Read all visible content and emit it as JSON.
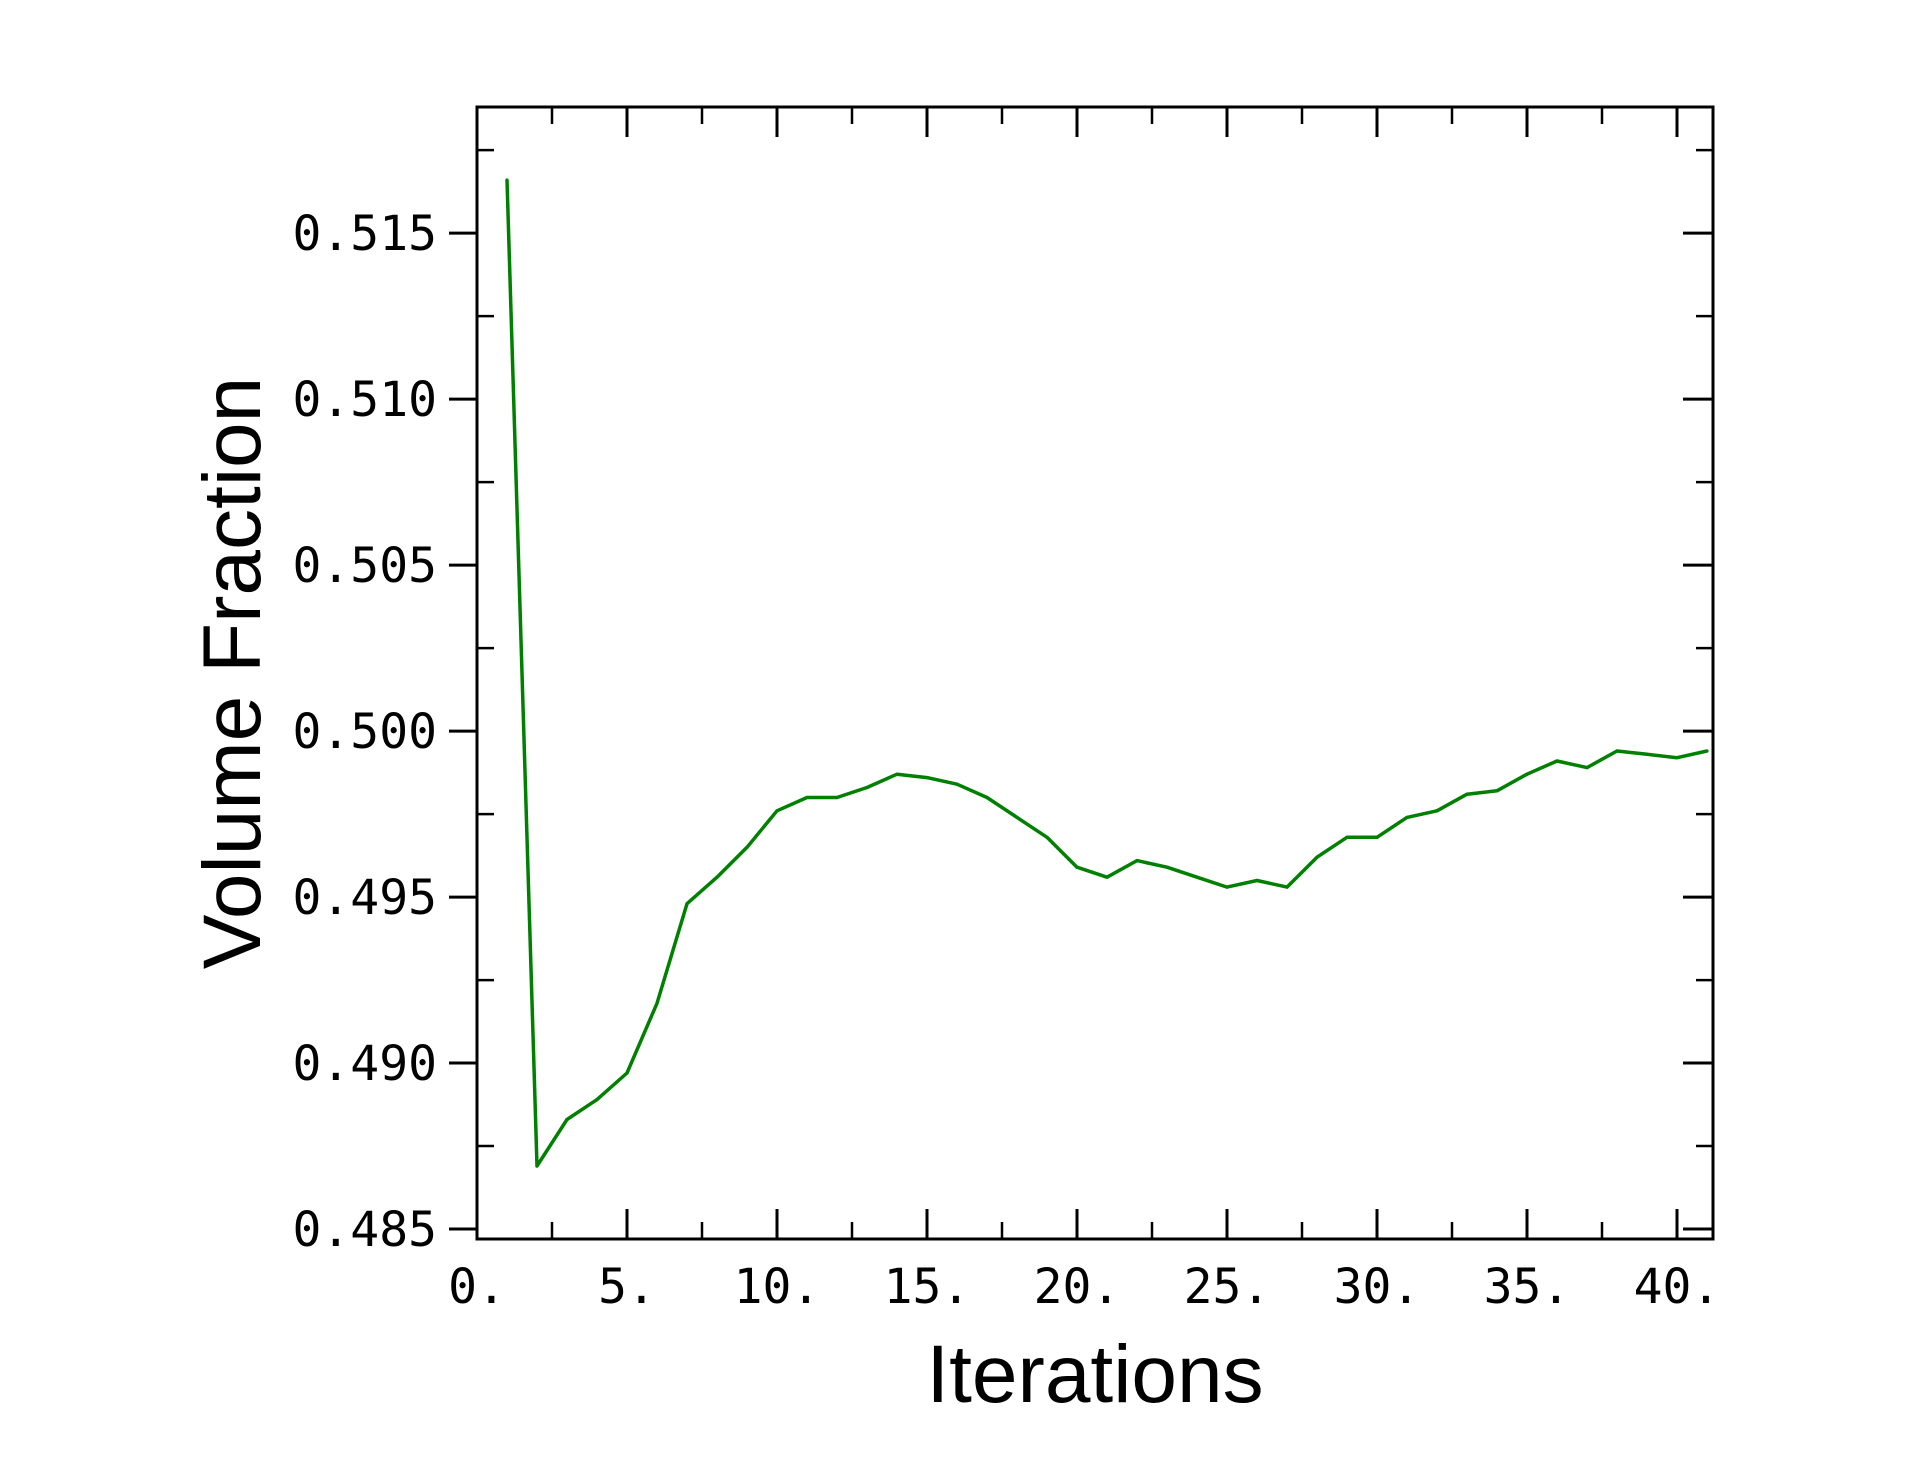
{
  "chart_data": {
    "type": "line",
    "title": "",
    "xlabel": "Iterations",
    "ylabel": "Volume Fraction",
    "xlim": [
      0,
      41.2
    ],
    "ylim": [
      0.4847,
      0.5188
    ],
    "x_ticks": [
      0,
      5,
      10,
      15,
      20,
      25,
      30,
      35,
      40
    ],
    "x_tick_labels": [
      "0.",
      "5.",
      "10.",
      "15.",
      "20.",
      "25.",
      "30.",
      "35.",
      "40."
    ],
    "y_ticks": [
      0.485,
      0.49,
      0.495,
      0.5,
      0.505,
      0.51,
      0.515
    ],
    "y_tick_labels": [
      "0.485",
      "0.490",
      "0.495",
      "0.500",
      "0.505",
      "0.510",
      "0.515"
    ],
    "grid": false,
    "line_color": "#008000",
    "series": [
      {
        "x": [
          1,
          2,
          3,
          4,
          5,
          6,
          7,
          8,
          9,
          10,
          11,
          12,
          13,
          14,
          15,
          16,
          17,
          18,
          19,
          20,
          21,
          22,
          23,
          24,
          25,
          26,
          27,
          28,
          29,
          30,
          31,
          32,
          33,
          34,
          35,
          36,
          37,
          38,
          39,
          40,
          41
        ],
        "values": [
          0.5166,
          0.4869,
          0.4883,
          0.4889,
          0.4897,
          0.4918,
          0.4948,
          0.4956,
          0.4965,
          0.4976,
          0.498,
          0.498,
          0.4983,
          0.4987,
          0.4986,
          0.4984,
          0.498,
          0.4974,
          0.4968,
          0.4959,
          0.4956,
          0.4961,
          0.4959,
          0.4956,
          0.4953,
          0.4955,
          0.4953,
          0.4962,
          0.4968,
          0.4968,
          0.4974,
          0.4976,
          0.4981,
          0.4982,
          0.4987,
          0.4991,
          0.4989,
          0.4994,
          0.4993,
          0.4992,
          0.4994
        ]
      }
    ]
  }
}
